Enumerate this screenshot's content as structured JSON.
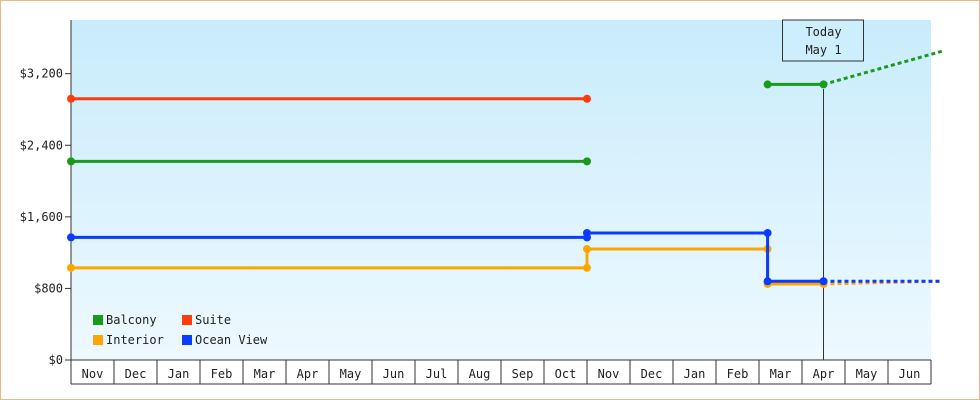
{
  "chart_data": {
    "type": "line",
    "y_ticks": [
      "$0",
      "$800",
      "$1,600",
      "$2,400",
      "$3,200"
    ],
    "ylim": [
      0,
      3800
    ],
    "month_labels": [
      "Nov",
      "Dec",
      "Jan",
      "Feb",
      "Mar",
      "Apr",
      "May",
      "Jun",
      "Jul",
      "Aug",
      "Sep",
      "Oct",
      "Nov",
      "Dec",
      "Jan",
      "Feb",
      "Mar",
      "Apr",
      "May",
      "Jun"
    ],
    "today_label": [
      "Today",
      "May 1"
    ],
    "series": [
      {
        "name": "Balcony",
        "color": "#1a9a1a",
        "segments": [
          {
            "x": [
              0,
              12
            ],
            "y": [
              2220,
              2220
            ]
          },
          {
            "x": [
              16.2,
              17.5
            ],
            "y": [
              3080,
              3080
            ]
          }
        ],
        "projection": {
          "x": [
            17.5,
            20.25
          ],
          "y": [
            3080,
            3450
          ]
        }
      },
      {
        "name": "Suite",
        "color": "#ff3b0a",
        "segments": [
          {
            "x": [
              0,
              12
            ],
            "y": [
              2920,
              2920
            ]
          }
        ]
      },
      {
        "name": "Interior",
        "color": "#ffa500",
        "segments": [
          {
            "x": [
              0,
              12
            ],
            "y": [
              1030,
              1030
            ]
          },
          {
            "x": [
              12,
              16.2
            ],
            "y": [
              1240,
              1240
            ]
          },
          {
            "x": [
              16.2,
              17.5
            ],
            "y": [
              850,
              850
            ]
          }
        ],
        "projection": {
          "x": [
            17.5,
            20.25
          ],
          "y": [
            850,
            880
          ]
        }
      },
      {
        "name": "Ocean View",
        "color": "#0a3cff",
        "segments": [
          {
            "x": [
              0,
              12
            ],
            "y": [
              1370,
              1370
            ]
          },
          {
            "x": [
              12,
              16.2
            ],
            "y": [
              1420,
              1420
            ]
          },
          {
            "x": [
              16.2,
              17.5
            ],
            "y": [
              880,
              880
            ]
          }
        ],
        "projection": {
          "x": [
            17.5,
            20.25
          ],
          "y": [
            880,
            880
          ]
        }
      }
    ],
    "today_x": 17.5,
    "legend_position": "bottom-left"
  }
}
